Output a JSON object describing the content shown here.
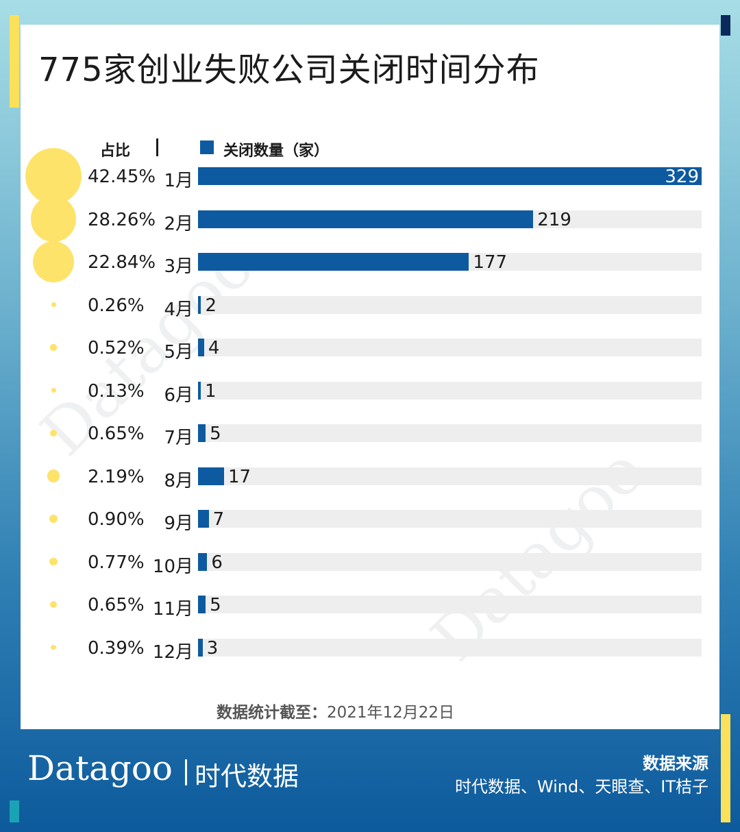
{
  "title": "775家创业失败公司关闭时间分布",
  "legend": {
    "ratio_label": "占比",
    "series_label": "关闭数量（家）"
  },
  "chart_data": {
    "type": "bar",
    "orientation": "horizontal",
    "title": "775家创业失败公司关闭时间分布",
    "categories": [
      "1月",
      "2月",
      "3月",
      "4月",
      "5月",
      "6月",
      "7月",
      "8月",
      "9月",
      "10月",
      "11月",
      "12月"
    ],
    "series": [
      {
        "name": "关闭数量（家）",
        "values": [
          329,
          219,
          177,
          2,
          4,
          1,
          5,
          17,
          7,
          6,
          5,
          3
        ]
      },
      {
        "name": "占比",
        "values": [
          "42.45%",
          "28.26%",
          "22.84%",
          "0.26%",
          "0.52%",
          "0.13%",
          "0.65%",
          "2.19%",
          "0.90%",
          "0.77%",
          "0.65%",
          "0.39%"
        ]
      }
    ],
    "xlim": [
      0,
      329
    ],
    "grid": false,
    "legend_position": "top-left"
  },
  "footer": {
    "label": "数据统计截至：",
    "date": "2021年12月22日"
  },
  "brand": {
    "name": "Datagoo",
    "cn": "时代数据"
  },
  "source": {
    "title": "数据来源",
    "list": "时代数据、Wind、天眼查、IT桔子"
  },
  "colors": {
    "bar": "#0d5aa0",
    "track": "#eeeeee",
    "dot": "#fde36a"
  }
}
